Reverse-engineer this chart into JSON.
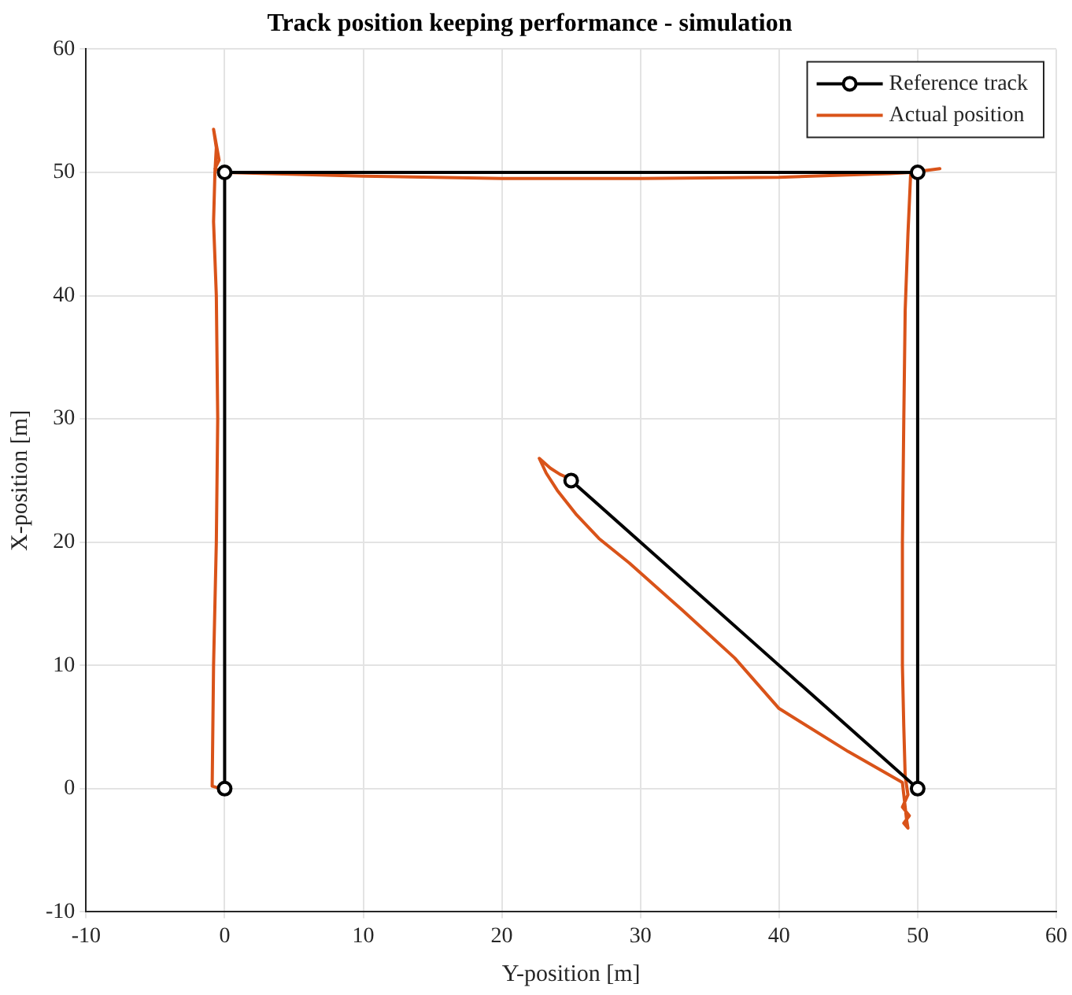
{
  "chart_data": {
    "type": "line",
    "title": "Track position keeping performance - simulation",
    "xlabel": "Y-position [m]",
    "ylabel": "X-position [m]",
    "xlim": [
      -10,
      60
    ],
    "xticks": [
      -10,
      0,
      10,
      20,
      30,
      40,
      50,
      60
    ],
    "ylim": [
      -10,
      60
    ],
    "yticks": [
      -10,
      0,
      10,
      20,
      30,
      40,
      50,
      60
    ],
    "grid": true,
    "legend": "top right",
    "line_style": "solid",
    "series": [
      {
        "name": "Reference track",
        "color": "#000000",
        "marker": "circle",
        "x": [
          0,
          0,
          50,
          50,
          25
        ],
        "values": [
          0,
          50,
          50,
          0,
          25
        ]
      },
      {
        "name": "Actual position",
        "color": "#d95319",
        "marker": "none",
        "x": [
          -0.3,
          -0.9,
          -0.8,
          -0.6,
          -0.5,
          -0.6,
          -0.8,
          -0.7,
          -0.6,
          -0.8,
          -0.4,
          -0.7,
          0,
          10,
          20,
          30,
          40,
          48,
          49.5,
          51.6,
          49.5,
          49.3,
          49.1,
          49,
          48.9,
          48.9,
          49,
          49.1,
          49.3,
          48.9,
          49.4,
          49,
          49.3,
          49.2,
          48.9,
          45,
          40,
          36.8,
          33,
          29.2,
          27,
          25.4,
          24,
          23.2,
          22.7,
          23.5,
          24.2,
          24.6
        ],
        "values": [
          0,
          0.2,
          10,
          20,
          30,
          40,
          46,
          50,
          52,
          53.5,
          51,
          50.3,
          50,
          49.7,
          49.5,
          49.5,
          49.6,
          49.9,
          50,
          50.3,
          50,
          45,
          38.8,
          30,
          20,
          10,
          5,
          1,
          -0.5,
          -1.5,
          -2.2,
          -2.8,
          -3.2,
          -2.5,
          0.5,
          3,
          6.5,
          10.6,
          14.5,
          18.3,
          20.3,
          22.2,
          24.2,
          25.6,
          26.8,
          26,
          25.5,
          25.3
        ]
      }
    ]
  }
}
